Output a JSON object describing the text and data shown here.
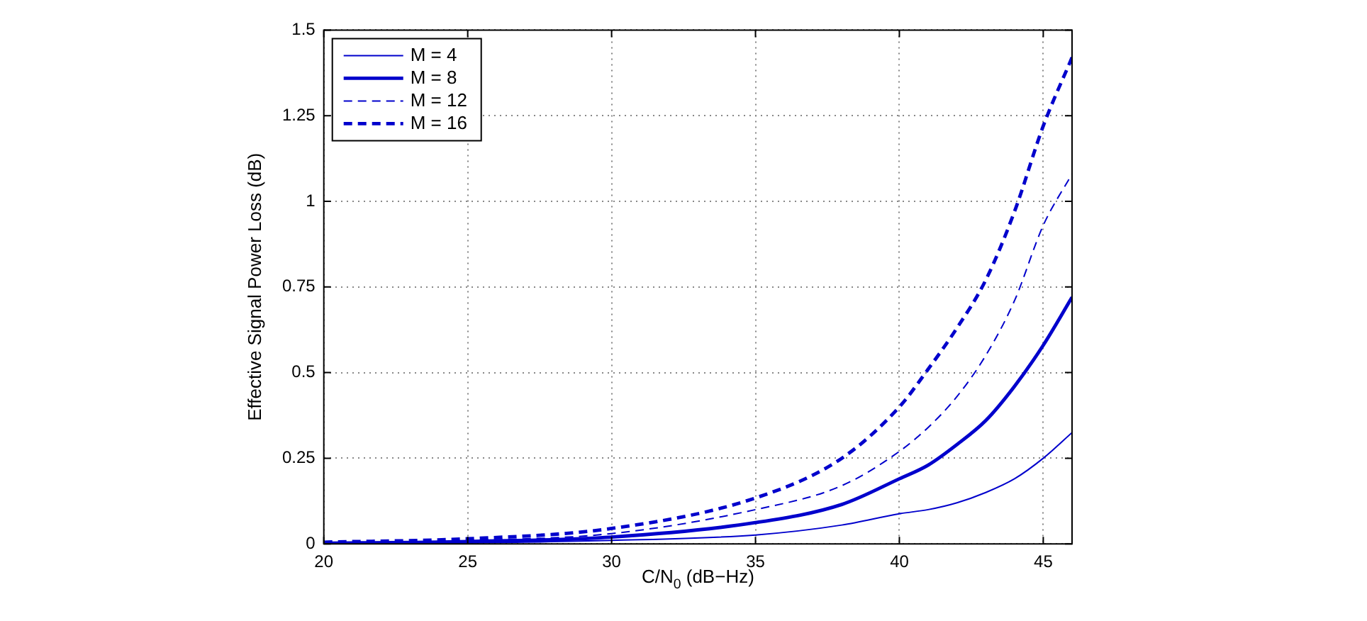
{
  "chart_data": {
    "type": "line",
    "xlabel": "C/N$_{0}$ (dB−Hz)",
    "ylabel": "Effective Signal Power Loss (dB)",
    "x": [
      20,
      25,
      30,
      35,
      38,
      40,
      41,
      42,
      43,
      44,
      45,
      46
    ],
    "series": [
      {
        "name": "M = 4",
        "color": "#0000cc",
        "line_style": "solid",
        "values": [
          0.001,
          0.003,
          0.01,
          0.026,
          0.055,
          0.088,
          0.1,
          0.12,
          0.15,
          0.19,
          0.25,
          0.325
        ]
      },
      {
        "name": "M = 8",
        "color": "#0000cc",
        "line_style": "solid",
        "values": [
          0.002,
          0.007,
          0.02,
          0.062,
          0.115,
          0.19,
          0.23,
          0.29,
          0.36,
          0.46,
          0.58,
          0.72
        ]
      },
      {
        "name": "M = 12",
        "color": "#0000cc",
        "line_style": "dashed",
        "values": [
          0.003,
          0.01,
          0.03,
          0.1,
          0.17,
          0.27,
          0.34,
          0.43,
          0.55,
          0.71,
          0.93,
          1.08
        ]
      },
      {
        "name": "M = 16",
        "color": "#0000cc",
        "line_style": "dashed",
        "values": [
          0.005,
          0.015,
          0.045,
          0.134,
          0.25,
          0.4,
          0.51,
          0.63,
          0.77,
          0.97,
          1.22,
          1.42
        ]
      }
    ],
    "xlim": [
      20,
      46
    ],
    "xticks": [
      20,
      25,
      30,
      35,
      40,
      45
    ],
    "ylim": [
      0,
      1.5
    ],
    "yticks": [
      0,
      0.25,
      0.5,
      0.75,
      1,
      1.25,
      1.5
    ],
    "grid": true,
    "legend": "top left",
    "marker": "none"
  }
}
